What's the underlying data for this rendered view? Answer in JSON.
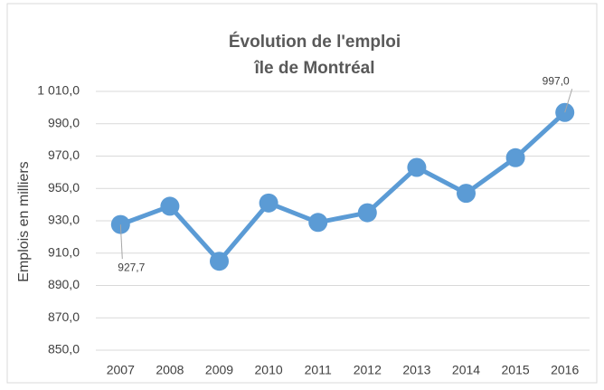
{
  "chart_data": {
    "type": "line",
    "title": "Évolution de l'emploi",
    "subtitle": "île de Montréal",
    "y_label": "Emplois en milliers",
    "categories": [
      "2007",
      "2008",
      "2009",
      "2010",
      "2011",
      "2012",
      "2013",
      "2014",
      "2015",
      "2016"
    ],
    "values": [
      927.7,
      939,
      905,
      941,
      929,
      935,
      963,
      947,
      969,
      997.0
    ],
    "value_labels": [
      "927,7",
      null,
      null,
      null,
      null,
      null,
      null,
      null,
      null,
      "997,0"
    ],
    "color": "#5b9bd5",
    "ylim": [
      850,
      1010
    ],
    "yticks": [
      {
        "value": 850,
        "label": "850,0"
      },
      {
        "value": 870,
        "label": "870,0"
      },
      {
        "value": 890,
        "label": "890,0"
      },
      {
        "value": 910,
        "label": "910,0"
      },
      {
        "value": 930,
        "label": "930,0"
      },
      {
        "value": 950,
        "label": "950,0"
      },
      {
        "value": 970,
        "label": "970,0"
      },
      {
        "value": 990,
        "label": "990,0"
      },
      {
        "value": 1010,
        "label": "1 010,0"
      }
    ],
    "grid": true
  }
}
